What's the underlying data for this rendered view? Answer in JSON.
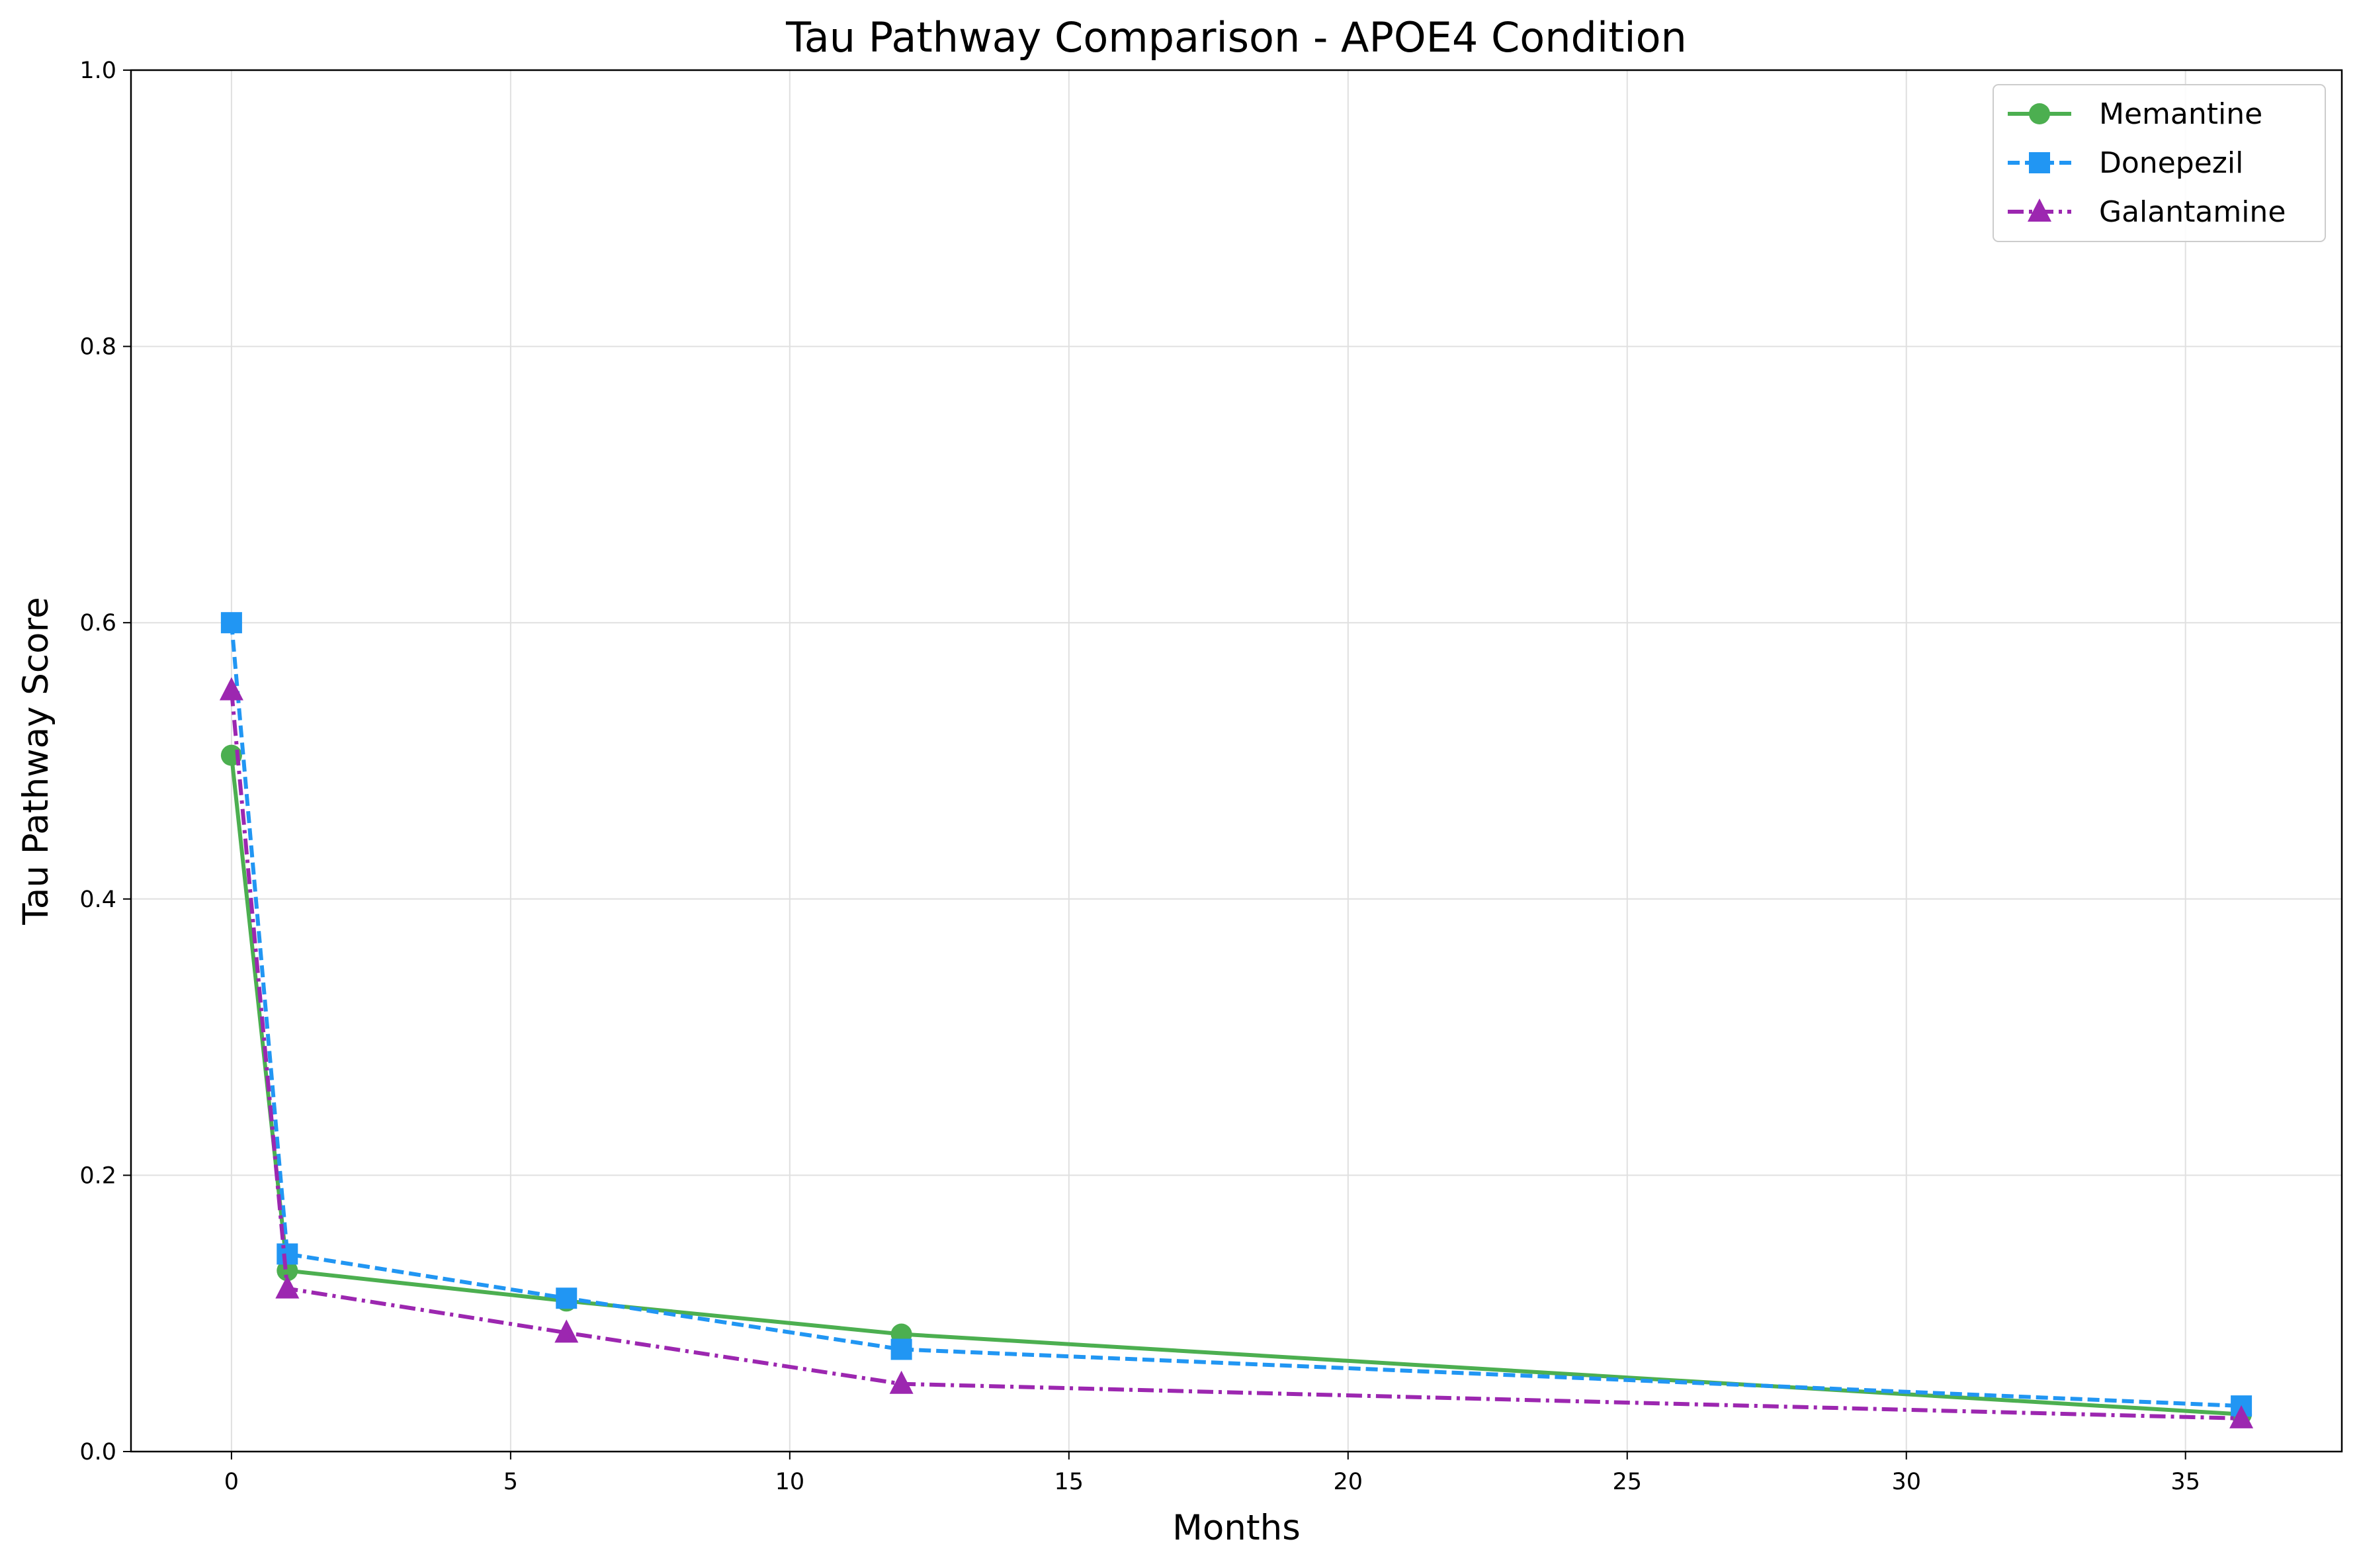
{
  "chart_data": {
    "type": "line",
    "title": "Tau Pathway Comparison - APOE4 Condition",
    "xlabel": "Months",
    "ylabel": "Tau Pathway Score",
    "xlim": [
      -1.8,
      37.8
    ],
    "ylim": [
      0,
      1.0
    ],
    "xticks": [
      0,
      5,
      10,
      15,
      20,
      25,
      30,
      35
    ],
    "yticks": [
      0.0,
      0.2,
      0.4,
      0.6,
      0.8,
      1.0
    ],
    "xtick_labels": [
      "0",
      "5",
      "10",
      "15",
      "20",
      "25",
      "30",
      "35"
    ],
    "ytick_labels": [
      "0.0",
      "0.2",
      "0.4",
      "0.6",
      "0.8",
      "1.0"
    ],
    "grid": true,
    "legend_position": "top-right",
    "x": [
      0,
      1,
      6,
      12,
      36
    ],
    "series": [
      {
        "name": "Memantine",
        "values": [
          0.504,
          0.131,
          0.109,
          0.085,
          0.027
        ],
        "color": "#4caf50",
        "dash": "solid",
        "marker": "circle"
      },
      {
        "name": "Donepezil",
        "values": [
          0.6,
          0.143,
          0.111,
          0.074,
          0.033
        ],
        "color": "#2196f3",
        "dash": "dashed",
        "marker": "square"
      },
      {
        "name": "Galantamine",
        "values": [
          0.551,
          0.118,
          0.086,
          0.049,
          0.024
        ],
        "color": "#9c27b0",
        "dash": "dashdot",
        "marker": "triangle"
      }
    ]
  }
}
